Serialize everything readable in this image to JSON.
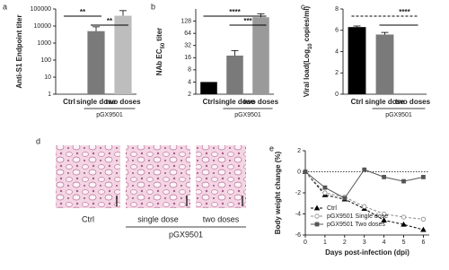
{
  "chart_data": [
    {
      "type": "bar",
      "panel": "a",
      "ylabel": "Anti-S1 Endpoint titer",
      "yscale": "log",
      "categories": [
        "Ctrl",
        "single dose",
        "two doses"
      ],
      "values": [
        null,
        5000,
        40000
      ],
      "errors": [
        null,
        4000,
        40000
      ],
      "colors": [
        "#000000",
        "#7a7a7a",
        "#bdbdbd"
      ],
      "ylim": [
        1,
        100000
      ],
      "yticks": [
        1,
        10,
        100,
        1000,
        10000,
        100000
      ],
      "significance": [
        {
          "from": 0,
          "to": 1,
          "label": "**"
        },
        {
          "from": 1,
          "to": 2,
          "label": "**"
        }
      ],
      "group": {
        "label": "pGX9501",
        "from": 1,
        "to": 2
      }
    },
    {
      "type": "bar",
      "panel": "b",
      "ylabel": {
        "text": "NAb EC",
        "sub": "50",
        "tail": "titer"
      },
      "yscale": "log",
      "categories": [
        "Ctrl",
        "single dose",
        "two doses"
      ],
      "values": [
        4,
        18,
        160
      ],
      "errors": [
        null,
        6,
        35
      ],
      "colors": [
        "#000000",
        "#7a7a7a",
        "#9a9a9a"
      ],
      "ylim": [
        2,
        256
      ],
      "yticks": [
        2,
        4,
        8,
        16,
        32,
        64,
        128
      ],
      "significance": [
        {
          "from": 0,
          "to": 2,
          "label": "****"
        },
        {
          "from": 1,
          "to": 2,
          "label": "***"
        }
      ],
      "group": {
        "label": "pGX9501",
        "from": 1,
        "to": 2
      }
    },
    {
      "type": "bar",
      "panel": "c",
      "ylabel": {
        "text": "Viral load(Log",
        "sub": "10",
        "tail": "copies/ml)"
      },
      "categories": [
        "Ctrl",
        "single dose",
        "two doses"
      ],
      "values": [
        6.3,
        5.6,
        0
      ],
      "errors": [
        0.1,
        0.2,
        null
      ],
      "colors": [
        "#000000",
        "#7a7a7a",
        "#bdbdbd"
      ],
      "ylim": [
        0,
        8
      ],
      "yticks": [
        0,
        2,
        4,
        6,
        8
      ],
      "significance": [
        {
          "from": 0,
          "to": 2,
          "label": "****",
          "style": "dashed"
        },
        {
          "from": 1,
          "to": 2
        }
      ],
      "group": {
        "label": "pGX9501",
        "from": 1,
        "to": 2
      }
    },
    {
      "type": "line",
      "panel": "e",
      "ylabel": "Body weight change (%)",
      "xlabel": "Days post-infection (dpi)",
      "x": [
        0,
        1,
        2,
        3,
        4,
        5,
        6
      ],
      "xlim": [
        0,
        6.3
      ],
      "xticks": [
        0,
        1,
        2,
        3,
        4,
        5,
        6
      ],
      "ylim": [
        -6,
        2
      ],
      "yticks": [
        2,
        0,
        -2,
        -4,
        -6
      ],
      "hline": 0,
      "legend": "lower left",
      "series": [
        {
          "name": "Ctrl",
          "color": "#000000",
          "marker": "triangle",
          "dash": "3,2",
          "values": [
            0,
            -2.2,
            -2.6,
            -3.5,
            -4.6,
            -5,
            -5.5
          ]
        },
        {
          "name": "pGX9501 Single dose",
          "color": "#8a8a8a",
          "marker": "circle",
          "dash": "3,2",
          "values": [
            0,
            -2,
            -2.4,
            -3.3,
            -4,
            -4.3,
            -4.5
          ]
        },
        {
          "name": "pGX9501 Two doses",
          "color": "#555555",
          "marker": "square",
          "dash": "",
          "values": [
            0,
            -1.5,
            -2.5,
            0.2,
            -0.5,
            -0.9,
            -0.5
          ]
        }
      ]
    }
  ],
  "histology": {
    "panel": "d",
    "labels": [
      "Ctrl",
      "single dose",
      "two doses"
    ],
    "group": "pGX9501"
  }
}
